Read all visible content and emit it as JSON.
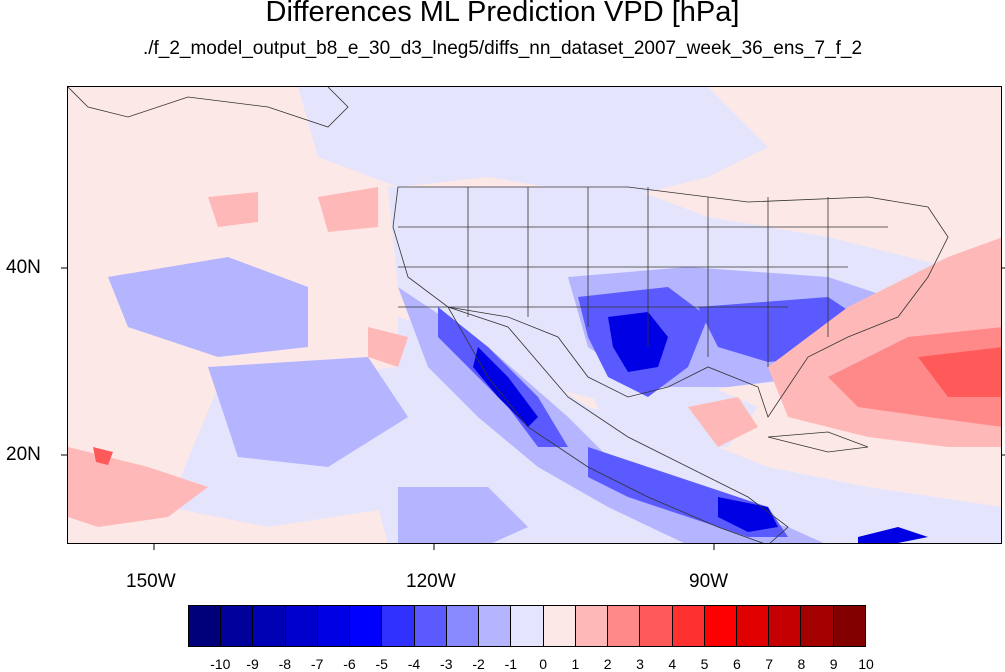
{
  "title": "Differences ML Prediction VPD [hPa]",
  "subtitle": "./f_2_model_output_b8_e_30_d3_lneg5/diffs_nn_dataset_2007_week_36_ens_7_f_2",
  "axes": {
    "lat_labels": [
      "40N",
      "20N"
    ],
    "lon_labels": [
      "150W",
      "120W",
      "90W"
    ]
  },
  "colorbar": {
    "labels": [
      "-10",
      "-9",
      "-8",
      "-7",
      "-6",
      "-5",
      "-4",
      "-3",
      "-2",
      "-1",
      "0",
      "1",
      "2",
      "3",
      "4",
      "5",
      "6",
      "7",
      "8",
      "9",
      "10"
    ],
    "colors": [
      "#00007a",
      "#00009a",
      "#0000b4",
      "#0000cc",
      "#0000e4",
      "#0000ff",
      "#3030ff",
      "#5a5aff",
      "#8888ff",
      "#b4b4ff",
      "#e4e4fc",
      "#fde8e8",
      "#ffb8b8",
      "#ff8888",
      "#ff5a5a",
      "#ff3030",
      "#ff0000",
      "#e00000",
      "#c40000",
      "#a40000",
      "#820000"
    ]
  },
  "map": {
    "background_color": "#fde8e8",
    "negative_colors": [
      "#e4e4fc",
      "#b4b4ff",
      "#8888ff",
      "#5a5aff",
      "#0000e4"
    ],
    "positive_colors": [
      "#ffb8b8",
      "#ff8888",
      "#ff5a5a"
    ]
  }
}
